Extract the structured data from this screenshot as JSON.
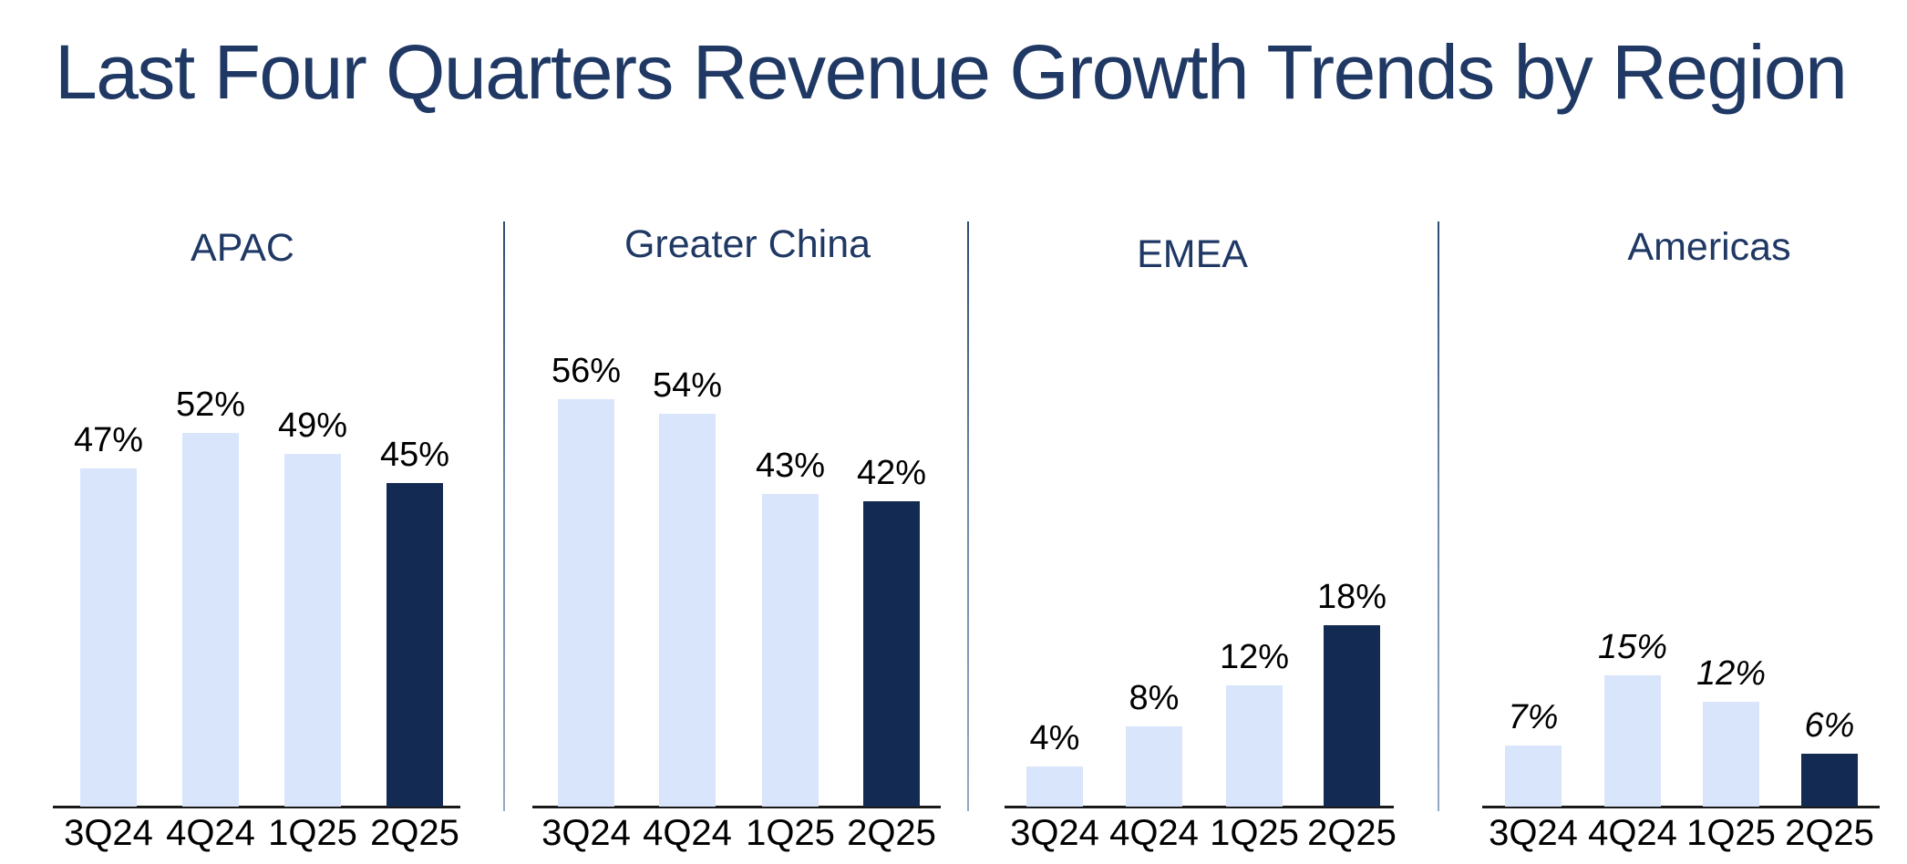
{
  "slide_title": "Last Four Quarters Revenue Growth Trends by Region",
  "colors": {
    "title_navy": "#1F3864",
    "bar_light": "#D9E5FA",
    "bar_dark_highlight": "#132A52",
    "data_label": "#000000",
    "axis_line": "#1A1A1A",
    "divider_line": "#6D87A8"
  },
  "chart_data": {
    "type": "bar",
    "title": "Last Four Quarters Revenue Growth Trends by Region",
    "categories": [
      "3Q24",
      "4Q24",
      "1Q25",
      "2Q25"
    ],
    "value_unit": "%",
    "grid": "off",
    "legend": "none",
    "ylabel": "",
    "xlabel": "",
    "highlight_note": "Most recent quarter (2Q25) bar is dark navy in every panel; earlier quarters are light blue",
    "panels": [
      {
        "region": "APAC",
        "values": [
          47,
          52,
          49,
          45
        ],
        "data_labels": [
          "47%",
          "52%",
          "49%",
          "45%"
        ],
        "labels_italic": false
      },
      {
        "region": "Greater China",
        "values": [
          56,
          54,
          43,
          42
        ],
        "data_labels": [
          "56%",
          "54%",
          "43%",
          "42%"
        ],
        "labels_italic": false
      },
      {
        "region": "EMEA",
        "values": [
          4,
          8,
          12,
          18
        ],
        "data_labels": [
          "4%",
          "8%",
          "12%",
          "18%"
        ],
        "labels_italic": false
      },
      {
        "region": "Americas",
        "values": [
          7,
          15,
          12,
          6
        ],
        "data_labels": [
          "7%",
          "15%",
          "12%",
          "6%"
        ],
        "labels_italic": true
      }
    ]
  }
}
